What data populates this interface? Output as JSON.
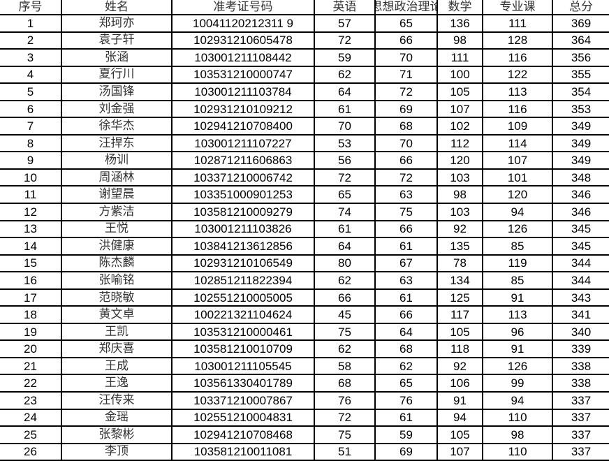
{
  "headers": [
    "序号",
    "姓名",
    "准考证号码",
    "英语",
    "思想政治理论",
    "数学",
    "专业课",
    "总分"
  ],
  "rows": [
    [
      "1",
      "郑珂亦",
      "10041120212311 9",
      "57",
      "65",
      "136",
      "111",
      "369"
    ],
    [
      "2",
      "袁子轩",
      "102931210605478",
      "72",
      "66",
      "98",
      "128",
      "364"
    ],
    [
      "3",
      "张涵",
      "103001211108442",
      "59",
      "70",
      "111",
      "116",
      "356"
    ],
    [
      "4",
      "夏行川",
      "103531210000747",
      "62",
      "71",
      "100",
      "122",
      "355"
    ],
    [
      "5",
      "汤国锋",
      "103001211103784",
      "64",
      "72",
      "105",
      "113",
      "354"
    ],
    [
      "6",
      "刘金强",
      "102931210109212",
      "61",
      "69",
      "107",
      "116",
      "353"
    ],
    [
      "7",
      "徐华杰",
      "102941210708400",
      "70",
      "68",
      "102",
      "109",
      "349"
    ],
    [
      "8",
      "汪捍东",
      "103001211107227",
      "53",
      "70",
      "112",
      "114",
      "349"
    ],
    [
      "9",
      "杨训",
      "102871211606863",
      "56",
      "66",
      "120",
      "107",
      "349"
    ],
    [
      "10",
      "周涵林",
      "103371210006742",
      "72",
      "72",
      "103",
      "101",
      "348"
    ],
    [
      "11",
      "谢望晨",
      "103351000901253",
      "65",
      "63",
      "98",
      "120",
      "346"
    ],
    [
      "12",
      "方紫洁",
      "103581210009279",
      "74",
      "75",
      "103",
      "94",
      "346"
    ],
    [
      "13",
      "王悦",
      "103001211103826",
      "61",
      "66",
      "92",
      "126",
      "345"
    ],
    [
      "14",
      "洪健康",
      "103841213612856",
      "64",
      "61",
      "135",
      "85",
      "345"
    ],
    [
      "15",
      "陈杰麟",
      "102931210106549",
      "80",
      "67",
      "78",
      "119",
      "344"
    ],
    [
      "16",
      "张喻铭",
      "102851211822394",
      "62",
      "63",
      "134",
      "85",
      "344"
    ],
    [
      "17",
      "范晓敏",
      "102551210005005",
      "66",
      "61",
      "125",
      "91",
      "343"
    ],
    [
      "18",
      "黄文卓",
      "100221321104624",
      "45",
      "66",
      "117",
      "113",
      "341"
    ],
    [
      "19",
      "王凯",
      "103531210000461",
      "75",
      "64",
      "105",
      "96",
      "340"
    ],
    [
      "20",
      "郑庆喜",
      "103581210010709",
      "62",
      "68",
      "118",
      "91",
      "339"
    ],
    [
      "21",
      "王成",
      "103001211105545",
      "58",
      "62",
      "92",
      "126",
      "338"
    ],
    [
      "22",
      "王逸",
      "103561330401789",
      "68",
      "65",
      "106",
      "99",
      "338"
    ],
    [
      "23",
      "汪传来",
      "103371210007867",
      "76",
      "76",
      "91",
      "94",
      "337"
    ],
    [
      "24",
      "金瑶",
      "102551210004831",
      "72",
      "61",
      "94",
      "110",
      "337"
    ],
    [
      "25",
      "张黎彬",
      "102941210708468",
      "75",
      "59",
      "105",
      "98",
      "337"
    ],
    [
      "26",
      "李顶",
      "103581210011081",
      "51",
      "69",
      "107",
      "110",
      "337"
    ]
  ]
}
